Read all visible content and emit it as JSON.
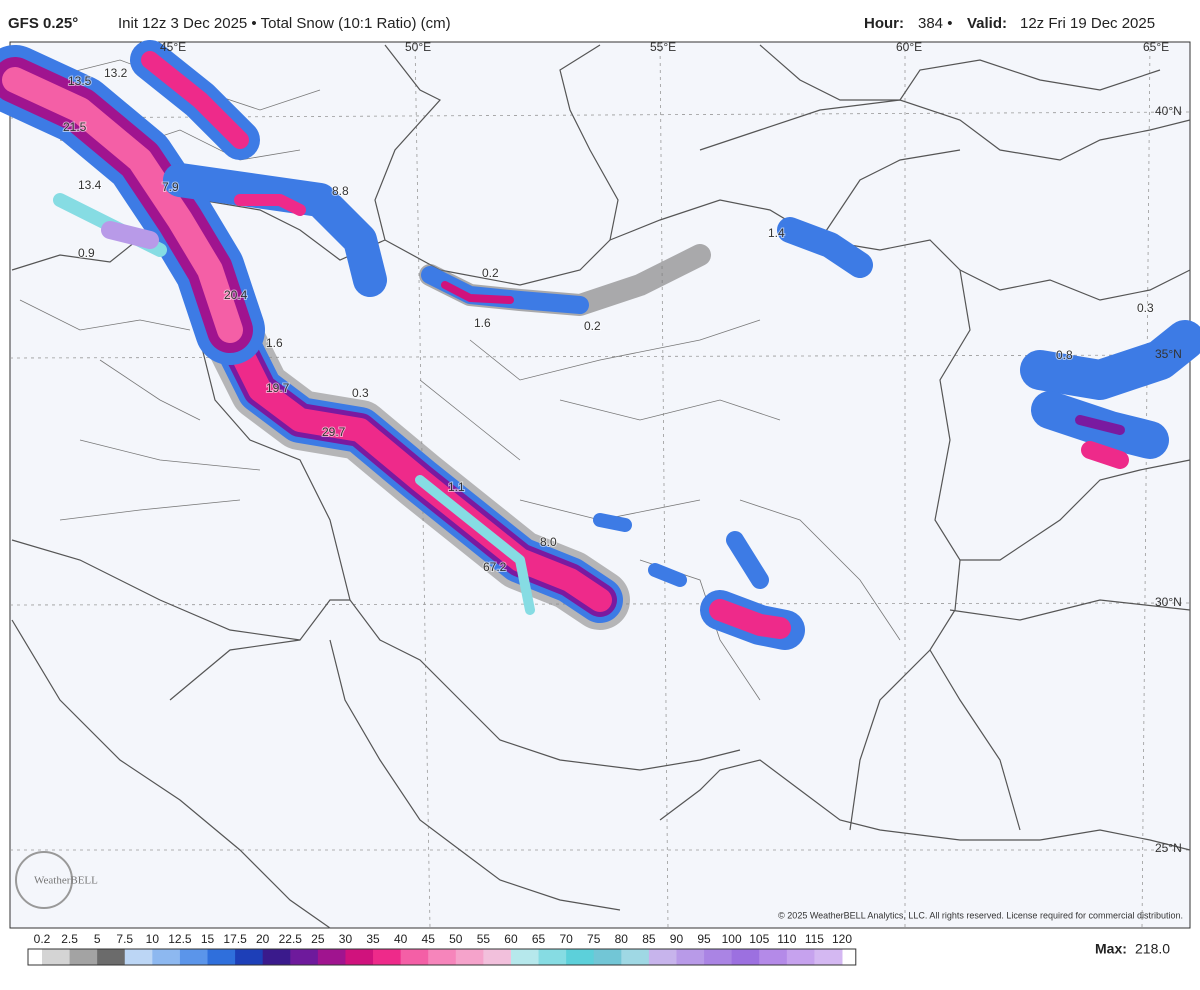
{
  "header": {
    "model": "GFS 0.25°",
    "info": "Init 12z 3 Dec 2025 • Total Snow (10:1 Ratio) (cm)",
    "hour_label": "Hour:",
    "hour": "384 •",
    "valid_label": "Valid:",
    "valid": "12z Fri 19 Dec 2025"
  },
  "map": {
    "longitudes": [
      "45°E",
      "50°E",
      "55°E",
      "60°E",
      "65°E"
    ],
    "latitudes": [
      "40°N",
      "35°N",
      "30°N",
      "25°N"
    ],
    "value_labels": [
      "13.5",
      "13.2",
      "21.5",
      "13.4",
      "0.9",
      "7.9",
      "8.8",
      "1.4",
      "0.2",
      "1.6",
      "0.2",
      "20.4",
      "1.6",
      "19.7",
      "0.3",
      "29.7",
      "1.1",
      "67.2",
      "8.0",
      "0.3",
      "0.8"
    ],
    "logo": "WeatherBELL",
    "copyright": "© 2025 WeatherBELL Analytics, LLC. All rights reserved. License required for commercial distribution."
  },
  "colorbar": {
    "labels": [
      "0.2",
      "2.5",
      "5",
      "7.5",
      "10",
      "12.5",
      "15",
      "17.5",
      "20",
      "22.5",
      "25",
      "30",
      "35",
      "40",
      "45",
      "50",
      "55",
      "60",
      "65",
      "70",
      "75",
      "80",
      "85",
      "90",
      "95",
      "100",
      "105",
      "110",
      "115",
      "120"
    ],
    "colors": [
      "#d4d4d4",
      "#a3a3a3",
      "#6b6b6b",
      "#bcd6f5",
      "#8db8f0",
      "#5b95ea",
      "#2f6fdc",
      "#1d3fb8",
      "#3a1a8c",
      "#6e1a9c",
      "#a0148f",
      "#d0127d",
      "#ee2a8a",
      "#f45fa6",
      "#f685bb",
      "#f5a3cb",
      "#f2c0dc",
      "#b6e8ec",
      "#86dce3",
      "#5cd0da",
      "#72c6d6",
      "#9fd8e4",
      "#c7b4ec",
      "#b89ae8",
      "#aa84e4",
      "#9c70e0",
      "#b48ae8",
      "#c6a2ee",
      "#d4b8f2"
    ],
    "max_label": "Max:",
    "max_value": "218.0"
  }
}
